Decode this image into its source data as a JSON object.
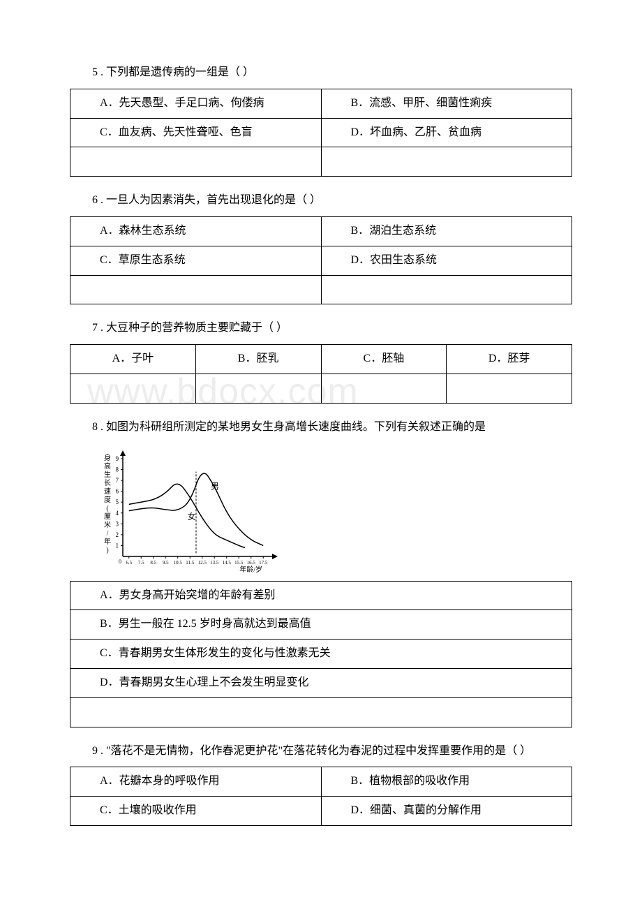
{
  "watermark": "www.bdocx.com",
  "q5": {
    "text": "5 . 下列都是遗传病的一组是（ ）",
    "a": "A．先天愚型、手足口病、佝偻病",
    "b": "B．流感、甲肝、细菌性痢疾",
    "c": "C．血友病、先天性聋哑、色盲",
    "d": "D．坏血病、乙肝、贫血病"
  },
  "q6": {
    "text": "6 . 一旦人为因素消失，首先出现退化的是（ ）",
    "a": "A．森林生态系统",
    "b": "B．湖泊生态系统",
    "c": "C．草原生态系统",
    "d": "D．农田生态系统"
  },
  "q7": {
    "text": "7 . 大豆种子的营养物质主要贮藏于（ ）",
    "a": "A．子叶",
    "b": "B．胚乳",
    "c": "C．胚轴",
    "d": "D．胚芽"
  },
  "q8": {
    "text": "8 . 如图为科研组所测定的某地男女生身高增长速度曲线。下列有关叙述正确的是",
    "a": "A．男女身高开始突增的年龄有差别",
    "b": "B．男生一般在 12.5 岁时身高就达到最高值",
    "c": "C．青春期男女生体形发生的变化与性激素无关",
    "d": "D．青春期男女生心理上不会发生明显变化",
    "chart": {
      "y_label": "身高生长速度(厘米/年)",
      "x_label_suffix": "年龄/岁",
      "male_label": "男",
      "female_label": "女",
      "y_ticks": [
        1,
        2,
        3,
        4,
        5,
        6,
        7,
        8,
        9
      ],
      "x_ticks": [
        "0",
        "6.5",
        "7.5",
        "8.5",
        "9.5",
        "10.5",
        "11.5",
        "12.5",
        "13.5",
        "14.5",
        "15.5",
        "16.5",
        "17.5"
      ],
      "x_positions": [
        0,
        6.5,
        7.5,
        8.5,
        9.5,
        10.5,
        11.5,
        12.5,
        13.5,
        14.5,
        15.5,
        16.5,
        17.5
      ],
      "male_curve": [
        {
          "x": 6.5,
          "y": 4.2
        },
        {
          "x": 7.5,
          "y": 4.4
        },
        {
          "x": 8.5,
          "y": 4.5
        },
        {
          "x": 9.5,
          "y": 4.3
        },
        {
          "x": 10.5,
          "y": 4.2
        },
        {
          "x": 11.5,
          "y": 5.0
        },
        {
          "x": 12.5,
          "y": 8.2
        },
        {
          "x": 13.5,
          "y": 6.5
        },
        {
          "x": 14.5,
          "y": 4.0
        },
        {
          "x": 15.5,
          "y": 2.5
        },
        {
          "x": 16.5,
          "y": 1.5
        },
        {
          "x": 17.5,
          "y": 1.0
        }
      ],
      "female_curve": [
        {
          "x": 6.5,
          "y": 4.8
        },
        {
          "x": 7.5,
          "y": 5.0
        },
        {
          "x": 8.5,
          "y": 5.2
        },
        {
          "x": 9.5,
          "y": 5.8
        },
        {
          "x": 10.5,
          "y": 7.0
        },
        {
          "x": 11.5,
          "y": 5.5
        },
        {
          "x": 12.5,
          "y": 3.5
        },
        {
          "x": 13.5,
          "y": 2.0
        },
        {
          "x": 14.5,
          "y": 1.5
        },
        {
          "x": 15.5,
          "y": 1.0
        },
        {
          "x": 16.0,
          "y": 0.8
        }
      ],
      "dashed_line_x": 12.0,
      "line_color": "#000000"
    }
  },
  "q9": {
    "text": "9 . \"落花不是无情物，化作春泥更护花\"在落花转化为春泥的过程中发挥重要作用的是（ ）",
    "a": "A．花瓣本身的呼吸作用",
    "b": "B．植物根部的吸收作用",
    "c": "C．土壤的吸收作用",
    "d": "D．细菌、真菌的分解作用"
  }
}
